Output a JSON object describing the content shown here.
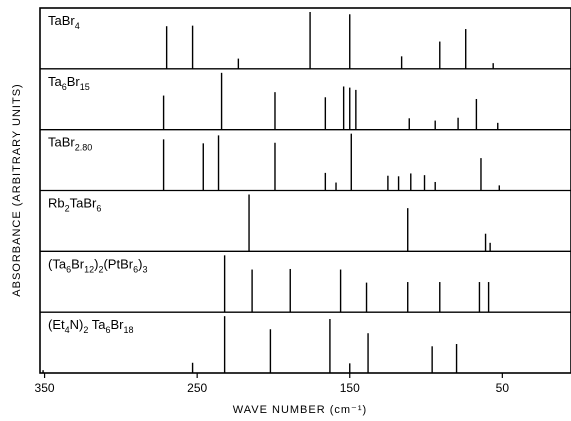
{
  "chart_data": {
    "type": "stick-spectrum",
    "xlabel": "WAVE NUMBER (cm⁻¹)",
    "ylabel": "ABSORBANCE  (ARBITRARY  UNITS)",
    "xlim": [
      353,
      5
    ],
    "x_ticks": [
      350,
      250,
      150,
      50
    ],
    "panels": [
      {
        "label": "TaBr4",
        "label_parts": [
          [
            "TaBr",
            "n"
          ],
          [
            "4",
            "sub"
          ]
        ],
        "lines": [
          {
            "x": 270,
            "y": 0.75
          },
          {
            "x": 253,
            "y": 0.76
          },
          {
            "x": 223,
            "y": 0.18
          },
          {
            "x": 176,
            "y": 1.0
          },
          {
            "x": 150,
            "y": 0.96
          },
          {
            "x": 116,
            "y": 0.22
          },
          {
            "x": 91,
            "y": 0.48
          },
          {
            "x": 74,
            "y": 0.7
          },
          {
            "x": 56,
            "y": 0.1
          }
        ]
      },
      {
        "label": "Ta6Br15",
        "label_parts": [
          [
            "Ta",
            "n"
          ],
          [
            "6",
            "sub"
          ],
          [
            "Br",
            "n"
          ],
          [
            "15",
            "sub"
          ]
        ],
        "lines": [
          {
            "x": 272,
            "y": 0.6
          },
          {
            "x": 234,
            "y": 1.0
          },
          {
            "x": 199,
            "y": 0.66
          },
          {
            "x": 166,
            "y": 0.57
          },
          {
            "x": 154,
            "y": 0.76
          },
          {
            "x": 150,
            "y": 0.74
          },
          {
            "x": 146,
            "y": 0.7
          },
          {
            "x": 111,
            "y": 0.2
          },
          {
            "x": 94,
            "y": 0.16
          },
          {
            "x": 79,
            "y": 0.21
          },
          {
            "x": 67,
            "y": 0.54
          },
          {
            "x": 53,
            "y": 0.12
          }
        ]
      },
      {
        "label": "TaBr2.80",
        "label_parts": [
          [
            "TaBr",
            "n"
          ],
          [
            "2.80",
            "sub"
          ]
        ],
        "lines": [
          {
            "x": 272,
            "y": 0.9
          },
          {
            "x": 246,
            "y": 0.83
          },
          {
            "x": 236,
            "y": 0.97
          },
          {
            "x": 199,
            "y": 0.84
          },
          {
            "x": 166,
            "y": 0.31
          },
          {
            "x": 159,
            "y": 0.14
          },
          {
            "x": 149,
            "y": 1.0
          },
          {
            "x": 125,
            "y": 0.26
          },
          {
            "x": 118,
            "y": 0.25
          },
          {
            "x": 110,
            "y": 0.3
          },
          {
            "x": 101,
            "y": 0.27
          },
          {
            "x": 94,
            "y": 0.15
          },
          {
            "x": 64,
            "y": 0.57
          },
          {
            "x": 52,
            "y": 0.09
          }
        ]
      },
      {
        "label": "Rb2TaBr6",
        "label_parts": [
          [
            "Rb",
            "n"
          ],
          [
            "2",
            "sub"
          ],
          [
            "TaBr",
            "n"
          ],
          [
            "6",
            "sub"
          ]
        ],
        "lines": [
          {
            "x": 216,
            "y": 1.0
          },
          {
            "x": 112,
            "y": 0.76
          },
          {
            "x": 61,
            "y": 0.31
          },
          {
            "x": 58,
            "y": 0.15
          }
        ]
      },
      {
        "label": "(Ta6Br12)2(PtBr6)3",
        "label_parts": [
          [
            "(Ta",
            "n"
          ],
          [
            "6",
            "sub"
          ],
          [
            "Br",
            "n"
          ],
          [
            "12",
            "sub"
          ],
          [
            ")",
            "n"
          ],
          [
            "2",
            "sub"
          ],
          [
            "(PtBr",
            "n"
          ],
          [
            "6",
            "sub"
          ],
          [
            ")",
            "n"
          ],
          [
            "3",
            "sub"
          ]
        ],
        "lines": [
          {
            "x": 232,
            "y": 1.0
          },
          {
            "x": 214,
            "y": 0.75
          },
          {
            "x": 189,
            "y": 0.76
          },
          {
            "x": 156,
            "y": 0.75
          },
          {
            "x": 139,
            "y": 0.52
          },
          {
            "x": 112,
            "y": 0.53
          },
          {
            "x": 91,
            "y": 0.53
          },
          {
            "x": 65,
            "y": 0.53
          },
          {
            "x": 59,
            "y": 0.53
          }
        ]
      },
      {
        "label": "(Et4N)2Ta6Br18",
        "label_parts": [
          [
            "(Et",
            "n"
          ],
          [
            "4",
            "sub"
          ],
          [
            "N)",
            "n"
          ],
          [
            "2",
            "sub"
          ],
          [
            " Ta",
            "n"
          ],
          [
            "6",
            "sub"
          ],
          [
            "Br",
            "n"
          ],
          [
            "18",
            "sub"
          ]
        ],
        "lines": [
          {
            "x": 351,
            "y": 0.05
          },
          {
            "x": 253,
            "y": 0.18
          },
          {
            "x": 232,
            "y": 1.0
          },
          {
            "x": 202,
            "y": 0.77
          },
          {
            "x": 163,
            "y": 0.95
          },
          {
            "x": 150,
            "y": 0.17
          },
          {
            "x": 138,
            "y": 0.7
          },
          {
            "x": 96,
            "y": 0.47
          },
          {
            "x": 80,
            "y": 0.51
          }
        ]
      }
    ]
  }
}
